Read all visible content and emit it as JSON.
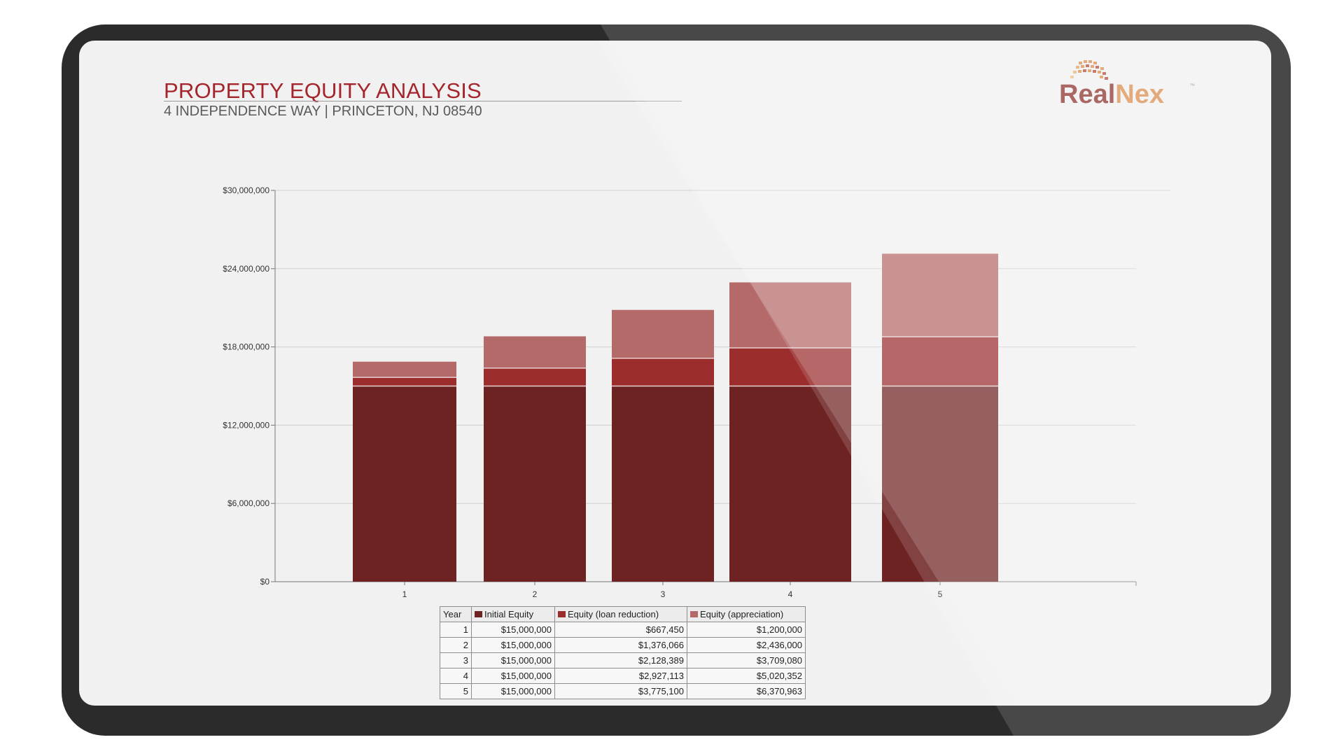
{
  "slide": {
    "title": "PROPERTY EQUITY ANALYSIS",
    "subtitle": "4 INDEPENDENCE WAY | PRINCETON, NJ 08540",
    "logo": {
      "part1": "Real",
      "part2": "Nex",
      "mark": "™"
    }
  },
  "colors": {
    "initial": "#6e2323",
    "loan": "#9b2d2d",
    "appreciation": "#b56a6a",
    "title": "#a4262c"
  },
  "chart_data": {
    "type": "bar",
    "stacked": true,
    "categories": [
      "1",
      "2",
      "3",
      "4",
      "5"
    ],
    "series": [
      {
        "name": "Initial Equity",
        "values": [
          15000000,
          15000000,
          15000000,
          15000000,
          15000000
        ]
      },
      {
        "name": "Equity (loan reduction)",
        "values": [
          667450,
          1376066,
          2128389,
          2927113,
          3775100
        ]
      },
      {
        "name": "Equity (appreciation)",
        "values": [
          1200000,
          2436000,
          3709080,
          5020352,
          6370963
        ]
      }
    ],
    "ylim": [
      0,
      30000000
    ],
    "yticks": [
      0,
      6000000,
      12000000,
      18000000,
      24000000,
      30000000
    ],
    "ytick_labels": [
      "$0",
      "$6,000,000",
      "$12,000,000",
      "$18,000,000",
      "$24,000,000",
      "$30,000,000"
    ],
    "grid": true,
    "legend": "table-below"
  },
  "table": {
    "headers": [
      "Year",
      "Initial Equity",
      "Equity (loan reduction)",
      "Equity (appreciation)"
    ],
    "rows": [
      [
        "1",
        "$15,000,000",
        "$667,450",
        "$1,200,000"
      ],
      [
        "2",
        "$15,000,000",
        "$1,376,066",
        "$2,436,000"
      ],
      [
        "3",
        "$15,000,000",
        "$2,128,389",
        "$3,709,080"
      ],
      [
        "4",
        "$15,000,000",
        "$2,927,113",
        "$5,020,352"
      ],
      [
        "5",
        "$15,000,000",
        "$3,775,100",
        "$6,370,963"
      ]
    ]
  }
}
